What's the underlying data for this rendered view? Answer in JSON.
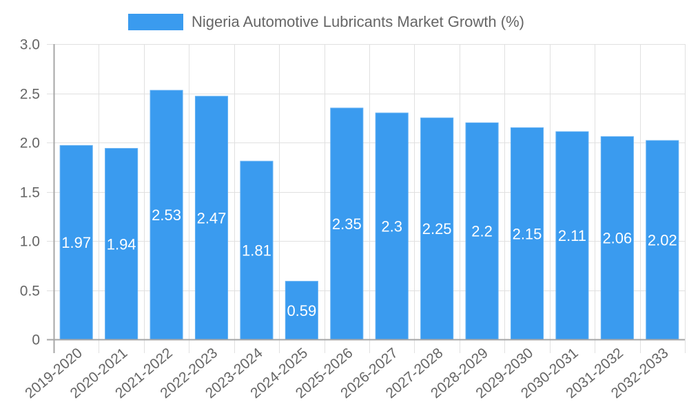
{
  "colors": {
    "bar_fill": "#3a9bef",
    "bar_border": "#64b1f3",
    "grid": "#e0e0e0",
    "axis": "#a6a6a6",
    "tick_text": "#666666",
    "data_label": "#ffffff"
  },
  "legend": {
    "label": "Nigeria Automotive Lubricants Market Growth (%)",
    "position": "top"
  },
  "chart_data": {
    "type": "bar",
    "title": "",
    "xlabel": "",
    "ylabel": "",
    "ylim": [
      0,
      3.0
    ],
    "yticks": [
      "0",
      "0.5",
      "1.0",
      "1.5",
      "2.0",
      "2.5",
      "3.0"
    ],
    "grid": true,
    "legend_position": "top",
    "categories": [
      "2019-2020",
      "2020-2021",
      "2021-2022",
      "2022-2023",
      "2023-2024",
      "2024-2025",
      "2025-2026",
      "2026-2027",
      "2027-2028",
      "2028-2029",
      "2029-2030",
      "2030-2031",
      "2031-2032",
      "2032-2033"
    ],
    "series": [
      {
        "name": "Nigeria Automotive Lubricants Market Growth (%)",
        "values": [
          1.97,
          1.94,
          2.53,
          2.47,
          1.81,
          0.59,
          2.35,
          2.3,
          2.25,
          2.2,
          2.15,
          2.11,
          2.06,
          2.02
        ],
        "data_labels": [
          "1.97",
          "1.94",
          "2.53",
          "2.47",
          "1.81",
          "0.59",
          "2.35",
          "2.3",
          "2.25",
          "2.2",
          "2.15",
          "2.11",
          "2.06",
          "2.02"
        ]
      }
    ]
  }
}
